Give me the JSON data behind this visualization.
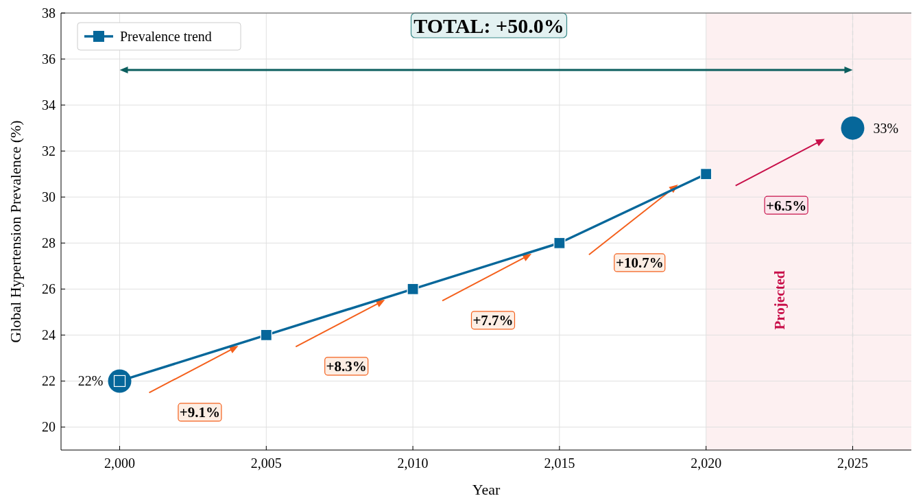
{
  "chart_data": {
    "type": "line",
    "xlabel": "Year",
    "ylabel": "Global Hypertension Prevalence (%)",
    "xlim": [
      1998,
      2027
    ],
    "ylim": [
      19,
      38
    ],
    "xticks": [
      {
        "value": 2000,
        "label": "2,000"
      },
      {
        "value": 2005,
        "label": "2,005"
      },
      {
        "value": 2010,
        "label": "2,010"
      },
      {
        "value": 2015,
        "label": "2,015"
      },
      {
        "value": 2020,
        "label": "2,020"
      },
      {
        "value": 2025,
        "label": "2,025"
      }
    ],
    "yticks": [
      20,
      22,
      24,
      26,
      28,
      30,
      32,
      34,
      36,
      38
    ],
    "grid": true,
    "legend": "top left",
    "marker": "square",
    "line_style": "solid",
    "series": [
      {
        "name": "Prevalence trend",
        "color": "#06679a",
        "x": [
          2000,
          2005,
          2010,
          2015,
          2020
        ],
        "values": [
          22,
          24,
          26,
          28,
          31
        ]
      },
      {
        "type": "scatter",
        "marker": "circle",
        "color": "#06679a",
        "x": [
          2000,
          2025
        ],
        "values": [
          22,
          33
        ],
        "value_labels": [
          "22%",
          "33%"
        ]
      }
    ],
    "bands": [
      {
        "axis": "x",
        "from": 2020,
        "to": 2027,
        "label": "Projected",
        "color": "#fdf0f1"
      }
    ],
    "ref_lines": [
      {
        "axis": "x",
        "value": 2025,
        "color": "#dddddd",
        "line_style": "dashed"
      }
    ],
    "annotations": [
      "+9.1%",
      "+8.3%",
      "+7.7%",
      "+10.7%",
      "+6.5%",
      "TOTAL: +50.0%"
    ]
  }
}
